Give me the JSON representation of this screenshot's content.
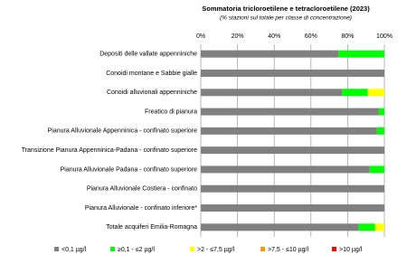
{
  "chart_data": {
    "type": "stacked-barh",
    "title": "Sommatoria tricloroetilene e tetracloroetilene (2023)",
    "subtitle": "(% stazioni sul totale per classe di concentrazione)",
    "categories": [
      "Depositi delle vallate appenniniche",
      "Conoidi montane e Sabbie gialle",
      "Conoidi alluvionali appenniniche",
      "Freatico di pianura",
      "Pianura Alluvionale Appenninica - confinato superiore",
      "Transizione Pianura Appenninica-Padana - confinato superiore",
      "Pianura Alluvionale Padana - confinato superiore",
      "Pianura Alluvionale Costiera - confinato",
      "Pianura Alluvionale - confinato inferiore*",
      "Totale acquiferi Emilia-Romagna"
    ],
    "series": [
      {
        "name": "<0,1 µg/l",
        "color": "#808080",
        "values": [
          75,
          100,
          77,
          97,
          96,
          100,
          92,
          100,
          100,
          86
        ]
      },
      {
        "name": "≥0,1 - ≤2 µg/l",
        "color": "#00ff00",
        "values": [
          25,
          0,
          14,
          3,
          4,
          0,
          8,
          0,
          0,
          9
        ]
      },
      {
        "name": ">2 - ≤7,5 µg/l",
        "color": "#ffff00",
        "values": [
          0,
          0,
          9,
          0,
          0,
          0,
          0,
          0,
          0,
          5
        ]
      },
      {
        "name": ">7,5 - ≤10 µg/l",
        "color": "#ff9900",
        "values": [
          0,
          0,
          0,
          0,
          0,
          0,
          0,
          0,
          0,
          0
        ]
      },
      {
        "name": ">10 µg/l",
        "color": "#ff0000",
        "values": [
          0,
          0,
          0,
          0,
          0,
          0,
          0,
          0,
          0,
          0
        ]
      }
    ],
    "xlim": [
      0,
      100
    ],
    "xticks": [
      {
        "value": 0,
        "label": "0%"
      },
      {
        "value": 20,
        "label": "20%"
      },
      {
        "value": 40,
        "label": "40%"
      },
      {
        "value": 60,
        "label": "60%"
      },
      {
        "value": 80,
        "label": "80%"
      },
      {
        "value": 100,
        "label": "100%"
      }
    ],
    "grid": true
  }
}
